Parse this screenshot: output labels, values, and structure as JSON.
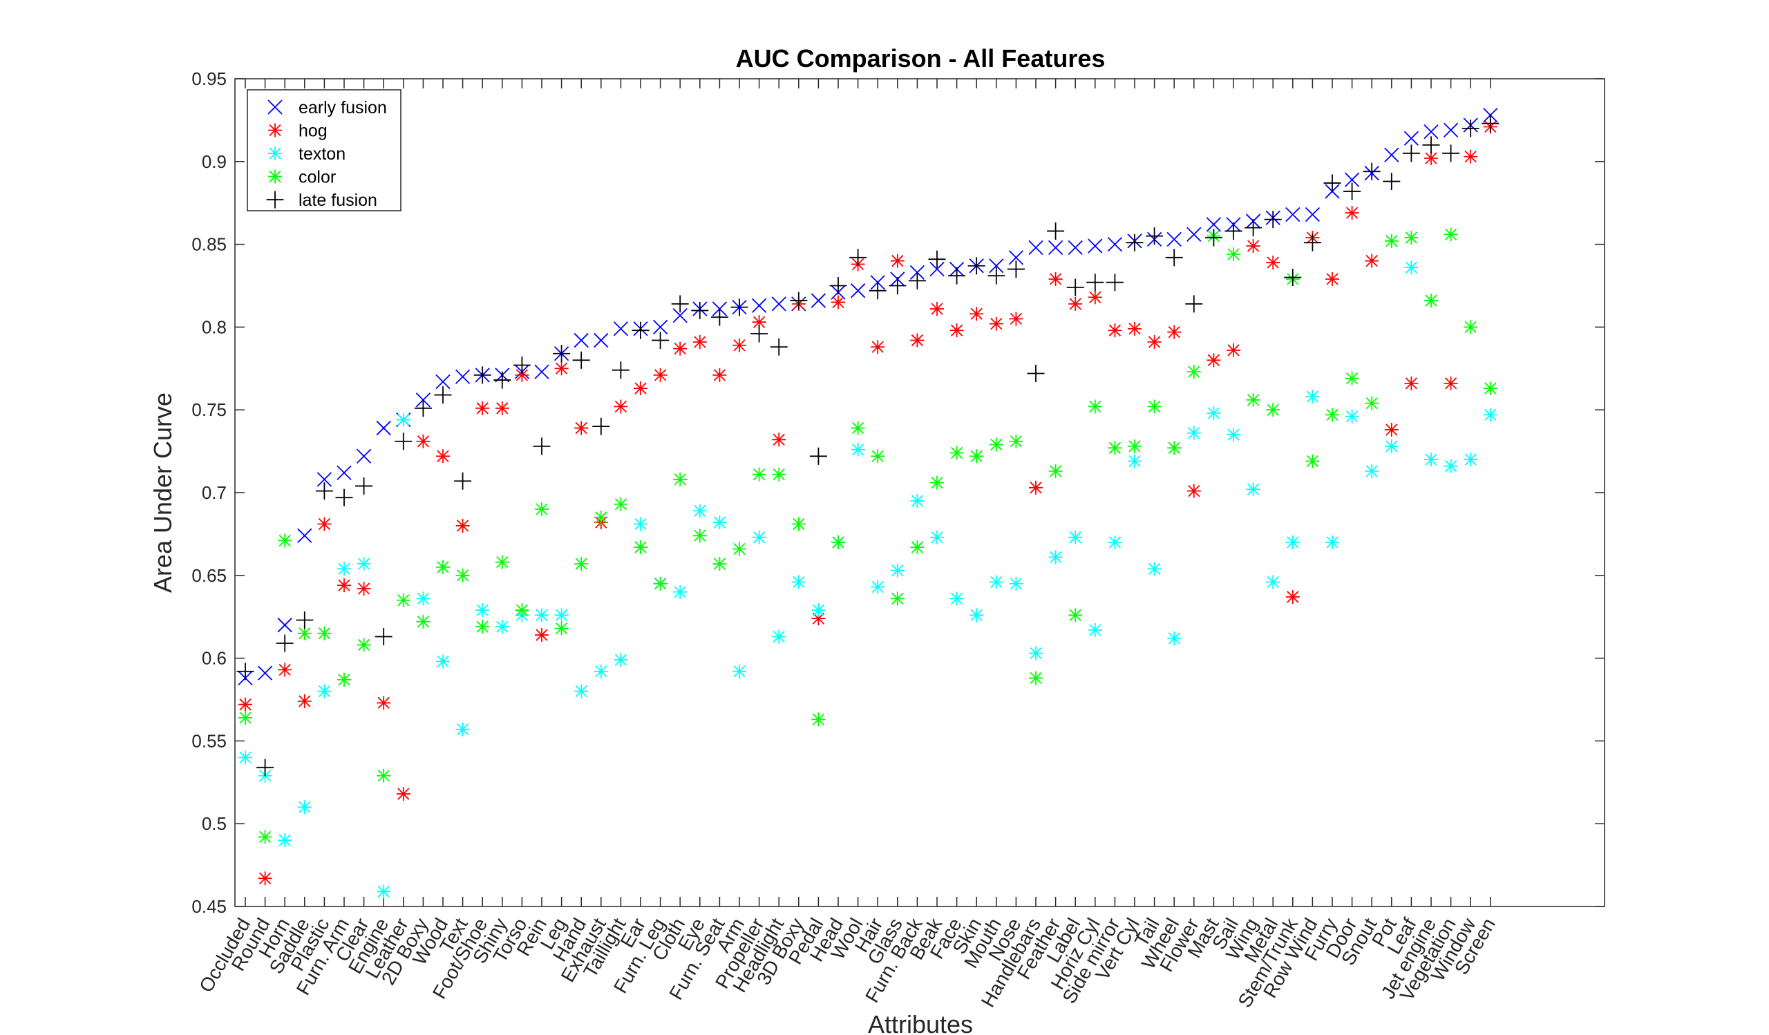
{
  "chart_data": {
    "type": "scatter",
    "title": "AUC Comparison - All Features",
    "xlabel": "Attributes",
    "ylabel": "Area Under Curve",
    "ylim": [
      0.45,
      0.95
    ],
    "yticks": [
      "0.45",
      "0.5",
      "0.55",
      "0.6",
      "0.65",
      "0.7",
      "0.75",
      "0.8",
      "0.85",
      "0.9",
      "0.95"
    ],
    "legend_position": "top-left",
    "grid": false,
    "categories": [
      "Occluded",
      "Round",
      "Horn",
      "Saddle",
      "Plastic",
      "Furn. Arm",
      "Clear",
      "Engine",
      "Leather",
      "2D Boxy",
      "Wood",
      "Text",
      "Foot/Shoe",
      "Shiny",
      "Torso",
      "Rein",
      "Leg",
      "Hand",
      "Exhaust",
      "Taillight",
      "Ear",
      "Furn. Leg",
      "Cloth",
      "Eye",
      "Furn. Seat",
      "Arm",
      "Propeller",
      "Headlight",
      "3D Boxy",
      "Pedal",
      "Head",
      "Wool",
      "Hair",
      "Glass",
      "Furn. Back",
      "Beak",
      "Face",
      "Skin",
      "Mouth",
      "Nose",
      "Handlebars",
      "Feather",
      "Label",
      "Horiz Cyl",
      "Side mirror",
      "Vert Cyl",
      "Tail",
      "Wheel",
      "Flower",
      "Mast",
      "Sail",
      "Wing",
      "Metal",
      "Stem/Trunk",
      "Row Wind",
      "Furry",
      "Door",
      "Snout",
      "Pot",
      "Leaf",
      "Jet engine",
      "Vegetation",
      "Window",
      "Screen"
    ],
    "series": [
      {
        "name": "early fusion",
        "marker": "x",
        "color": "#0000ff",
        "values": [
          0.588,
          0.591,
          0.62,
          0.674,
          0.708,
          0.712,
          0.722,
          0.739,
          0.744,
          0.756,
          0.767,
          0.77,
          0.771,
          0.771,
          0.773,
          0.773,
          0.784,
          0.792,
          0.792,
          0.799,
          0.799,
          0.8,
          0.807,
          0.811,
          0.811,
          0.812,
          0.813,
          0.814,
          0.814,
          0.816,
          0.821,
          0.822,
          0.827,
          0.829,
          0.833,
          0.835,
          0.835,
          0.837,
          0.837,
          0.842,
          0.848,
          0.848,
          0.848,
          0.849,
          0.85,
          0.852,
          0.853,
          0.853,
          0.856,
          0.862,
          0.862,
          0.864,
          0.866,
          0.868,
          0.868,
          0.882,
          0.889,
          0.893,
          0.904,
          0.914,
          0.918,
          0.919,
          0.922,
          0.928
        ]
      },
      {
        "name": "hog",
        "marker": "*",
        "color": "#ff0000",
        "values": [
          0.572,
          0.467,
          0.593,
          0.574,
          0.681,
          0.644,
          0.642,
          0.573,
          0.518,
          0.731,
          0.722,
          0.68,
          0.751,
          0.751,
          0.771,
          0.614,
          0.775,
          0.739,
          0.682,
          0.752,
          0.763,
          0.771,
          0.787,
          0.791,
          0.771,
          0.789,
          0.803,
          0.732,
          0.814,
          0.624,
          0.815,
          0.838,
          0.788,
          0.84,
          0.792,
          0.811,
          0.798,
          0.808,
          0.802,
          0.805,
          0.703,
          0.829,
          0.814,
          0.818,
          0.798,
          0.799,
          0.791,
          0.797,
          0.701,
          0.78,
          0.786,
          0.849,
          0.839,
          0.637,
          0.854,
          0.829,
          0.869,
          0.84,
          0.738,
          0.766,
          0.902,
          0.766,
          0.903,
          0.921
        ]
      },
      {
        "name": "texton",
        "marker": "*",
        "color": "#00ffff",
        "values": [
          0.54,
          0.529,
          0.49,
          0.51,
          0.58,
          0.654,
          0.657,
          0.459,
          0.744,
          0.636,
          0.598,
          0.557,
          0.629,
          0.619,
          0.626,
          0.626,
          0.626,
          0.58,
          0.592,
          0.599,
          0.681,
          0.645,
          0.64,
          0.689,
          0.682,
          0.592,
          0.673,
          0.613,
          0.646,
          0.629,
          0.67,
          0.726,
          0.643,
          0.653,
          0.695,
          0.673,
          0.636,
          0.626,
          0.646,
          0.645,
          0.603,
          0.661,
          0.673,
          0.617,
          0.67,
          0.719,
          0.654,
          0.612,
          0.736,
          0.748,
          0.735,
          0.702,
          0.646,
          0.67,
          0.758,
          0.67,
          0.746,
          0.713,
          0.728,
          0.836,
          0.72,
          0.716,
          0.72,
          0.747
        ]
      },
      {
        "name": "color",
        "marker": "*",
        "color": "#00ff00",
        "values": [
          0.564,
          0.492,
          0.671,
          0.615,
          0.615,
          0.587,
          0.608,
          0.529,
          0.635,
          0.622,
          0.655,
          0.65,
          0.619,
          0.658,
          0.629,
          0.69,
          0.618,
          0.657,
          0.685,
          0.693,
          0.667,
          0.645,
          0.708,
          0.674,
          0.657,
          0.666,
          0.711,
          0.711,
          0.681,
          0.563,
          0.67,
          0.739,
          0.722,
          0.636,
          0.667,
          0.706,
          0.724,
          0.722,
          0.729,
          0.731,
          0.588,
          0.713,
          0.626,
          0.752,
          0.727,
          0.728,
          0.752,
          0.727,
          0.773,
          0.855,
          0.844,
          0.756,
          0.75,
          0.829,
          0.719,
          0.747,
          0.769,
          0.754,
          0.852,
          0.854,
          0.816,
          0.856,
          0.8,
          0.763
        ]
      },
      {
        "name": "late fusion",
        "marker": "+",
        "color": "#000000",
        "values": [
          0.592,
          0.534,
          0.609,
          0.623,
          0.701,
          0.697,
          0.704,
          0.613,
          0.731,
          0.751,
          0.759,
          0.707,
          0.771,
          0.768,
          0.777,
          0.728,
          0.784,
          0.78,
          0.74,
          0.774,
          0.798,
          0.792,
          0.814,
          0.81,
          0.806,
          0.812,
          0.796,
          0.788,
          0.816,
          0.722,
          0.825,
          0.842,
          0.822,
          0.825,
          0.828,
          0.841,
          0.831,
          0.837,
          0.831,
          0.835,
          0.772,
          0.858,
          0.824,
          0.827,
          0.827,
          0.851,
          0.855,
          0.842,
          0.814,
          0.854,
          0.858,
          0.86,
          0.865,
          0.83,
          0.851,
          0.887,
          0.882,
          0.894,
          0.888,
          0.905,
          0.91,
          0.905,
          0.92,
          0.923
        ]
      }
    ]
  }
}
